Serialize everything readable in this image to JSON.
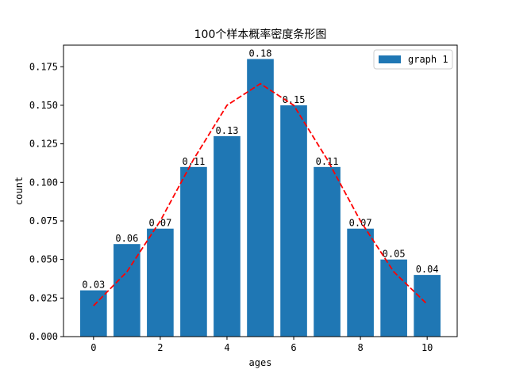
{
  "chart_data": {
    "type": "bar",
    "title": "100个样本概率密度条形图",
    "xlabel": "ages",
    "ylabel": "count",
    "x": [
      0,
      1,
      2,
      3,
      4,
      5,
      6,
      7,
      8,
      9,
      10
    ],
    "values": [
      0.03,
      0.06,
      0.07,
      0.11,
      0.13,
      0.18,
      0.15,
      0.11,
      0.07,
      0.05,
      0.04
    ],
    "data_labels": [
      "0.03",
      "0.06",
      "0.07",
      "0.11",
      "0.13",
      "0.18",
      "0.15",
      "0.11",
      "0.07",
      "0.05",
      "0.04"
    ],
    "line_values": [
      0.02,
      0.042,
      0.075,
      0.115,
      0.15,
      0.164,
      0.15,
      0.115,
      0.075,
      0.042,
      0.021
    ],
    "xlim": [
      -0.9,
      10.9
    ],
    "ylim": [
      0,
      0.189
    ],
    "xticks": [
      0,
      2,
      4,
      6,
      8,
      10
    ],
    "xtick_labels": [
      "0",
      "2",
      "4",
      "6",
      "8",
      "10"
    ],
    "yticks": [
      0,
      0.025,
      0.05,
      0.075,
      0.1,
      0.125,
      0.15,
      0.175
    ],
    "ytick_labels": [
      "0.000",
      "0.025",
      "0.050",
      "0.075",
      "0.100",
      "0.125",
      "0.150",
      "0.175"
    ],
    "grid": false,
    "legend": {
      "position": "top-right",
      "entries": [
        "graph 1"
      ]
    },
    "colors": {
      "bar": "#1f77b4",
      "line": "#ff0000"
    }
  }
}
